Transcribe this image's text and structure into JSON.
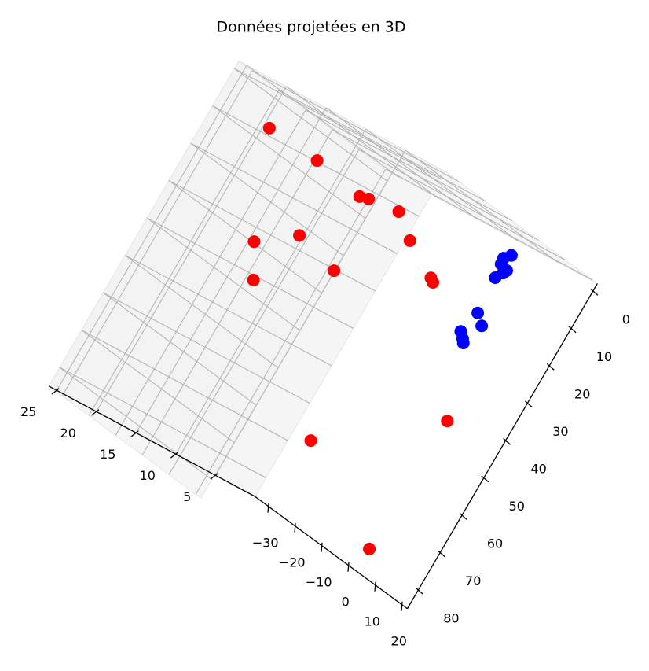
{
  "chart_data": {
    "type": "scatter3d",
    "title": "Données projetées en 3D",
    "xlim": [
      -2,
      85
    ],
    "ylim": [
      0,
      26
    ],
    "zlim": [
      -35,
      22
    ],
    "xticks": [
      0,
      10,
      20,
      30,
      40,
      50,
      60,
      70,
      80
    ],
    "yticks": [
      5,
      10,
      15,
      20,
      25
    ],
    "zticks": [
      {
        "value": -30,
        "label": "−30"
      },
      {
        "value": -20,
        "label": "−20"
      },
      {
        "value": -10,
        "label": "−10"
      },
      0,
      10,
      20
    ],
    "grid": true,
    "series": [
      {
        "color": "#ff0000",
        "x": [
          6.7,
          8.1,
          10.8,
          10.3,
          9.6,
          31.5,
          25.3,
          14.3,
          39.4,
          28.7,
          19.6,
          20.3,
          43.7,
          62.6,
          78.3
        ],
        "y": [
          24.8,
          18.4,
          12.3,
          11.3,
          7.7,
          19.9,
          15.9,
          5.0,
          17.8,
          10.6,
          0.9,
          0.45,
          2.3,
          14.3,
          2.6
        ],
        "z": [
          -20,
          -20,
          -20,
          -20,
          -20,
          -20,
          -20,
          -20,
          -20,
          -20,
          -20,
          -20,
          10,
          10,
          10
        ]
      },
      {
        "color": "#0000ff",
        "x": [
          3.5,
          4.9,
          6.4,
          7.1,
          8.0,
          9.8,
          18.9,
          21.1,
          24.5,
          25.8,
          26.6
        ],
        "y": [
          3.6,
          4.2,
          4.1,
          3.2,
          3.4,
          3.9,
          3.6,
          2.5,
          4.2,
          3.6,
          3.3
        ],
        "z": [
          5,
          5,
          5,
          5,
          5,
          5,
          5,
          5,
          5,
          5,
          5
        ]
      }
    ]
  }
}
